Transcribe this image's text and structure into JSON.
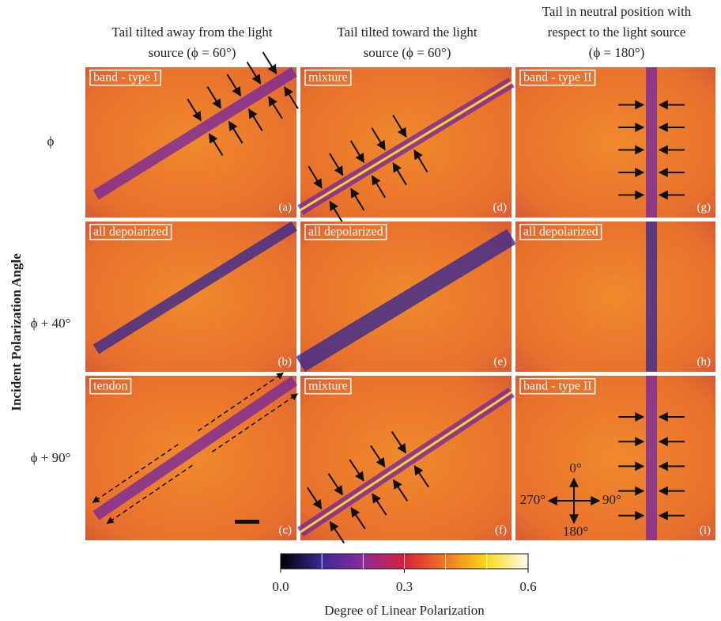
{
  "figure": {
    "y_axis_label": "Incident Polarization Angle",
    "columns": [
      {
        "lines": [
          "Tail tilted away from the light",
          "source (ϕ = 60°)"
        ]
      },
      {
        "lines": [
          "Tail tilted toward the light",
          "source (ϕ = 60°)"
        ]
      },
      {
        "lines": [
          "Tail in neutral position with",
          "respect to the light source",
          "(ϕ = 180°)"
        ]
      }
    ],
    "rows": [
      "ϕ",
      "ϕ + 40°",
      "ϕ + 90°"
    ],
    "panels": [
      [
        {
          "tag": "band - type I",
          "letter": "(a)"
        },
        {
          "tag": "all depolarized",
          "letter": "(b)"
        },
        {
          "tag": "tendon",
          "letter": "(c)"
        }
      ],
      [
        {
          "tag": "mixture",
          "letter": "(d)"
        },
        {
          "tag": "all depolarized",
          "letter": "(e)"
        },
        {
          "tag": "mixture",
          "letter": "(f)"
        }
      ],
      [
        {
          "tag": "band - type II",
          "letter": "(g)"
        },
        {
          "tag": "all depolarized",
          "letter": "(h)"
        },
        {
          "tag": "band - type II",
          "letter": "(i)"
        }
      ]
    ],
    "compass": [
      "0°",
      "90°",
      "180°",
      "270°"
    ],
    "colorbar": {
      "label": "Degree of Linear Polarization",
      "lim": [
        0,
        0.6
      ],
      "ticks": [
        {
          "value": 0,
          "label": "0.0"
        },
        0.3,
        0.6
      ]
    }
  }
}
